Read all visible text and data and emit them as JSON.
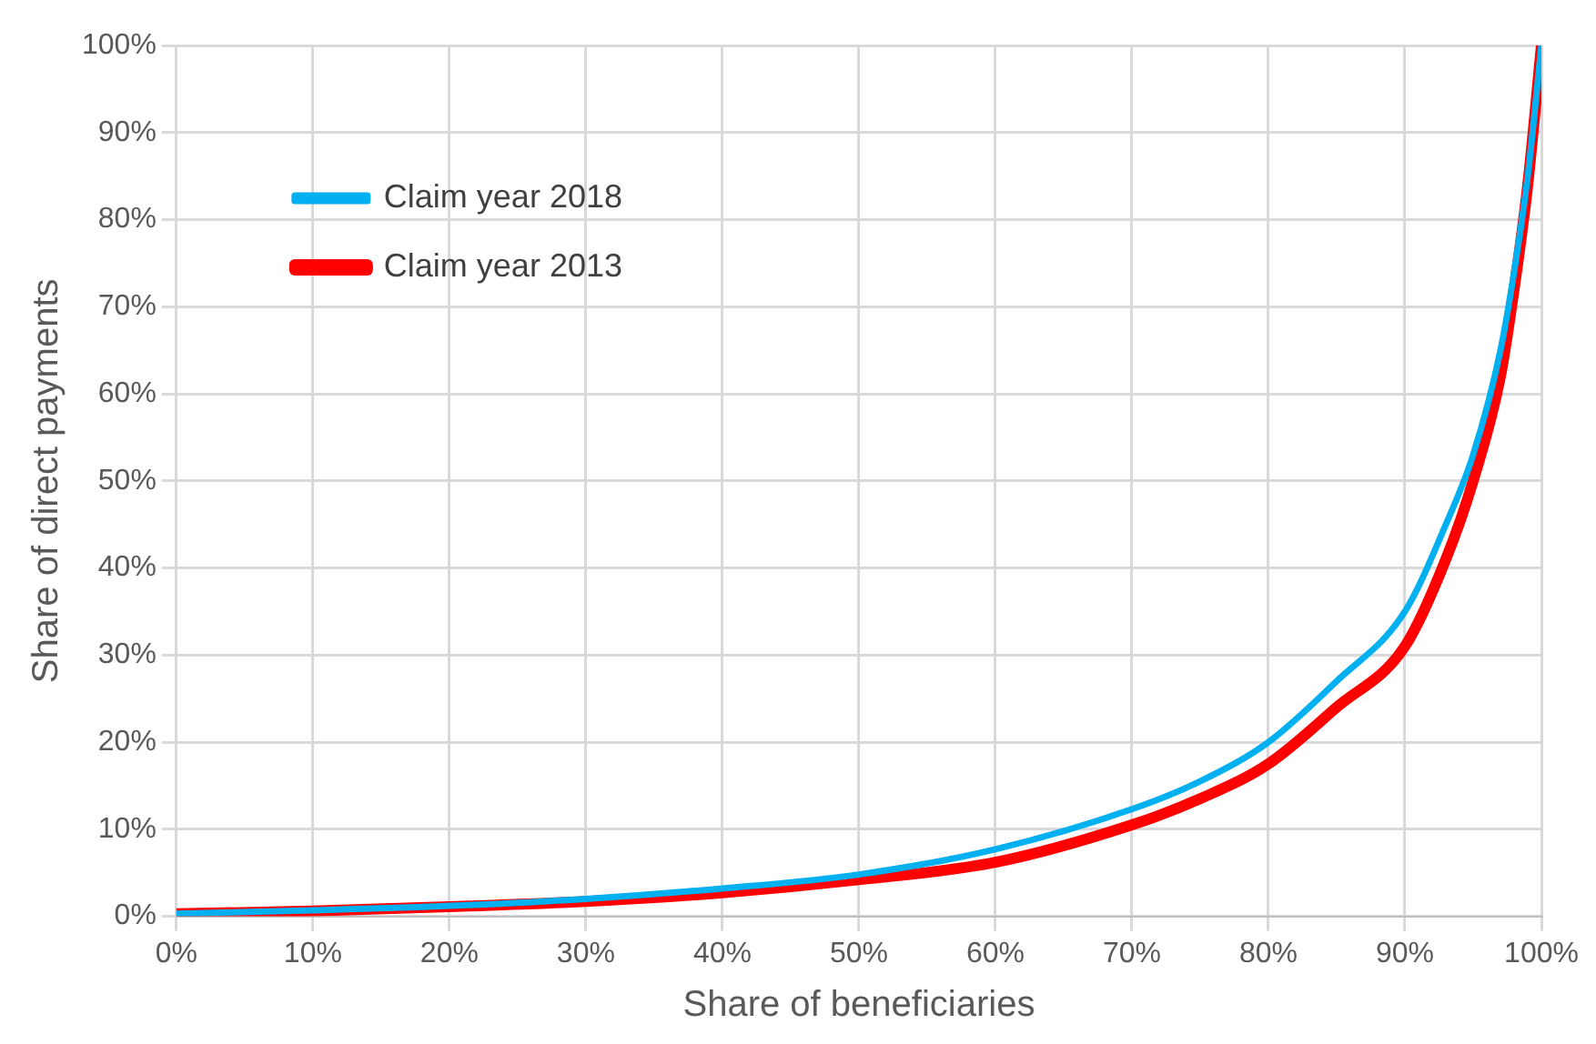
{
  "chart_data": {
    "type": "line",
    "xlabel": "Share of beneficiaries",
    "ylabel": "Share of direct payments",
    "xlim": [
      0,
      100
    ],
    "xticks": [
      {
        "value": 0,
        "label": "0%"
      },
      {
        "value": 10,
        "label": "10%"
      },
      {
        "value": 20,
        "label": "20%"
      },
      {
        "value": 30,
        "label": "30%"
      },
      {
        "value": 40,
        "label": "40%"
      },
      {
        "value": 50,
        "label": "50%"
      },
      {
        "value": 60,
        "label": "60%"
      },
      {
        "value": 70,
        "label": "70%"
      },
      {
        "value": 80,
        "label": "80%"
      },
      {
        "value": 90,
        "label": "90%"
      },
      {
        "value": 100,
        "label": "100%"
      }
    ],
    "ylim": [
      0,
      100
    ],
    "yticks": [
      {
        "value": 0,
        "label": "0%"
      },
      {
        "value": 10,
        "label": "10%"
      },
      {
        "value": 20,
        "label": "20%"
      },
      {
        "value": 30,
        "label": "30%"
      },
      {
        "value": 40,
        "label": "40%"
      },
      {
        "value": 50,
        "label": "50%"
      },
      {
        "value": 60,
        "label": "60%"
      },
      {
        "value": 70,
        "label": "70%"
      },
      {
        "value": 80,
        "label": "80%"
      },
      {
        "value": 90,
        "label": "90%"
      },
      {
        "value": 100,
        "label": "100%"
      }
    ],
    "x": [
      0,
      10,
      20,
      30,
      40,
      50,
      60,
      70,
      75,
      80,
      85,
      90,
      93,
      95,
      97,
      98,
      99,
      100
    ],
    "series": [
      {
        "name": "Claim year 2018",
        "color": "#00b0f0",
        "values": [
          0.3,
          0.7,
          1.2,
          2.0,
          3.2,
          4.8,
          7.7,
          12.3,
          15.5,
          20,
          27,
          35,
          45,
          53,
          65,
          74,
          85,
          100
        ]
      },
      {
        "name": "Claim year 2013",
        "color": "#ff0000",
        "values": [
          0.3,
          0.6,
          1.1,
          1.7,
          2.7,
          4.2,
          6.2,
          10.5,
          13.5,
          17.5,
          24,
          31,
          41,
          50,
          62,
          72,
          84,
          100
        ]
      }
    ],
    "grid": true,
    "legend": "top left",
    "marker": "none",
    "line_style": "solid"
  }
}
